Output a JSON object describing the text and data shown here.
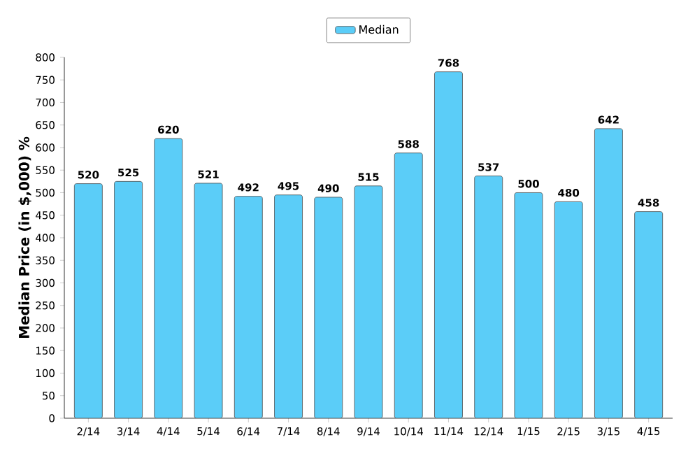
{
  "chart_data": {
    "type": "bar",
    "ylabel": "**Median Price (in $,000)** %",
    "categories": [
      "2/14",
      "3/14",
      "4/14",
      "5/14",
      "6/14",
      "7/14",
      "8/14",
      "9/14",
      "10/14",
      "11/14",
      "12/14",
      "1/15",
      "2/15",
      "3/15",
      "4/15"
    ],
    "series": [
      {
        "name": "Median",
        "color": "#5bcdf8",
        "values": [
          520,
          525,
          620,
          521,
          492,
          495,
          490,
          515,
          588,
          768,
          537,
          500,
          480,
          642,
          458
        ]
      }
    ],
    "ylim": [
      0,
      800
    ],
    "yticks": [
      0,
      50,
      100,
      150,
      200,
      250,
      300,
      350,
      400,
      450,
      500,
      550,
      600,
      650,
      700,
      750,
      800
    ],
    "data_labels": true,
    "legend": "top",
    "grid": false
  }
}
